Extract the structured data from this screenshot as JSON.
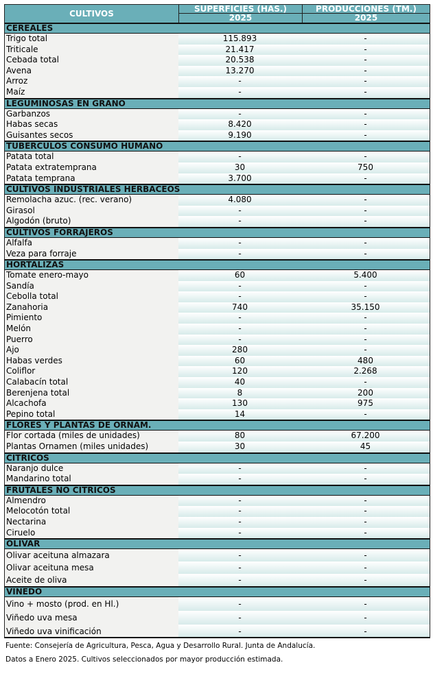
{
  "header": {
    "col1": "CULTIVOS",
    "col2": "SUPERFICIES (HAS.)",
    "col3": "PRODUCCIONES (TM.)",
    "year2": "2025",
    "year3": "2025"
  },
  "sections": [
    {
      "title": "CEREALES",
      "rows": [
        [
          "Trigo total",
          "115.893",
          "-"
        ],
        [
          "Triticale",
          "21.417",
          "-"
        ],
        [
          "Cebada total",
          "20.538",
          "-"
        ],
        [
          "Avena",
          "13.270",
          "-"
        ],
        [
          "Arroz",
          "-",
          "-"
        ],
        [
          "Maíz",
          "-",
          "-"
        ]
      ]
    },
    {
      "title": "LEGUMINOSAS EN GRANO",
      "rows": [
        [
          "Garbanzos",
          "-",
          "-"
        ],
        [
          "Habas secas",
          "8.420",
          "-"
        ],
        [
          "Guisantes secos",
          "9.190",
          "-"
        ]
      ]
    },
    {
      "title": "TUBÉRCULOS CONSUMO HUMANO",
      "rows": [
        [
          "Patata total",
          "-",
          "-"
        ],
        [
          "Patata extratemprana",
          "30",
          "750"
        ],
        [
          "Patata temprana",
          "3.700",
          "-"
        ]
      ]
    },
    {
      "title": "CULTIVOS INDUSTRIALES HERBÁCEOS",
      "rows": [
        [
          "Remolacha azuc. (rec. verano)",
          "4.080",
          "-"
        ],
        [
          "Girasol",
          "-",
          "-"
        ],
        [
          "Algodón (bruto)",
          "-",
          "-"
        ]
      ]
    },
    {
      "title": "CULTIVOS FORRAJEROS",
      "rows": [
        [
          "Alfalfa",
          "-",
          "-"
        ],
        [
          "Veza para forraje",
          "-",
          "-"
        ]
      ]
    },
    {
      "title": "HORTALIZAS",
      "rows": [
        [
          "Tomate enero-mayo",
          "60",
          "5.400"
        ],
        [
          "Sandía",
          "-",
          "-"
        ],
        [
          "Cebolla total",
          "-",
          "-"
        ],
        [
          "Zanahoria",
          "740",
          "35.150"
        ],
        [
          "Pimiento",
          "-",
          "-"
        ],
        [
          "Melón",
          "-",
          "-"
        ],
        [
          "Puerro",
          "-",
          "-"
        ],
        [
          "Ajo",
          "280",
          "-"
        ],
        [
          "Habas verdes",
          "60",
          "480"
        ],
        [
          "Coliflor",
          "120",
          "2.268"
        ],
        [
          "Calabacín total",
          "40",
          "-"
        ],
        [
          "Berenjena total",
          "8",
          "200"
        ],
        [
          "Alcachofa",
          "130",
          "975"
        ],
        [
          "Pepino total",
          "14",
          "-"
        ]
      ]
    },
    {
      "title": "FLORES Y PLANTAS DE ORNAM.",
      "rows": [
        [
          "Flor cortada (miles de unidades)",
          "80",
          "67.200"
        ],
        [
          "Plantas Ornamen (miles unidades)",
          "30",
          "45"
        ]
      ]
    },
    {
      "title": "CÍTRICOS",
      "rows": [
        [
          "Naranjo dulce",
          "-",
          "-"
        ],
        [
          "Mandarino total",
          "-",
          "-"
        ]
      ]
    },
    {
      "title": "FRUTALES NO CÍTRICOS",
      "rows": [
        [
          "Almendro",
          "-",
          "-"
        ],
        [
          "Melocotón total",
          "-",
          "-"
        ],
        [
          "Nectarina",
          "-",
          "-"
        ],
        [
          "Ciruelo",
          "-",
          "-"
        ]
      ]
    },
    {
      "title": "OLIVAR",
      "rows": [
        [
          "Olivar aceituna almazara",
          "-",
          "-"
        ],
        [
          "Olivar aceituna mesa",
          "-",
          "-"
        ],
        [
          "Aceite de oliva",
          "-",
          "-"
        ]
      ]
    },
    {
      "title": "VIÑEDO",
      "rows": [
        [
          "Vino + mosto (prod. en Hl.)",
          "-",
          "-"
        ],
        [
          "Viñedo uva mesa",
          "-",
          "-"
        ],
        [
          "Viñedo uva vinificación",
          "-",
          "-"
        ]
      ]
    }
  ],
  "footer": {
    "source": "Fuente: Consejería de Agricultura, Pesca, Agua y Desarrollo Rural. Junta de Andalucía.",
    "note": "Datos a Enero 2025. Cultivos seleccionados por mayor producción estimada."
  }
}
